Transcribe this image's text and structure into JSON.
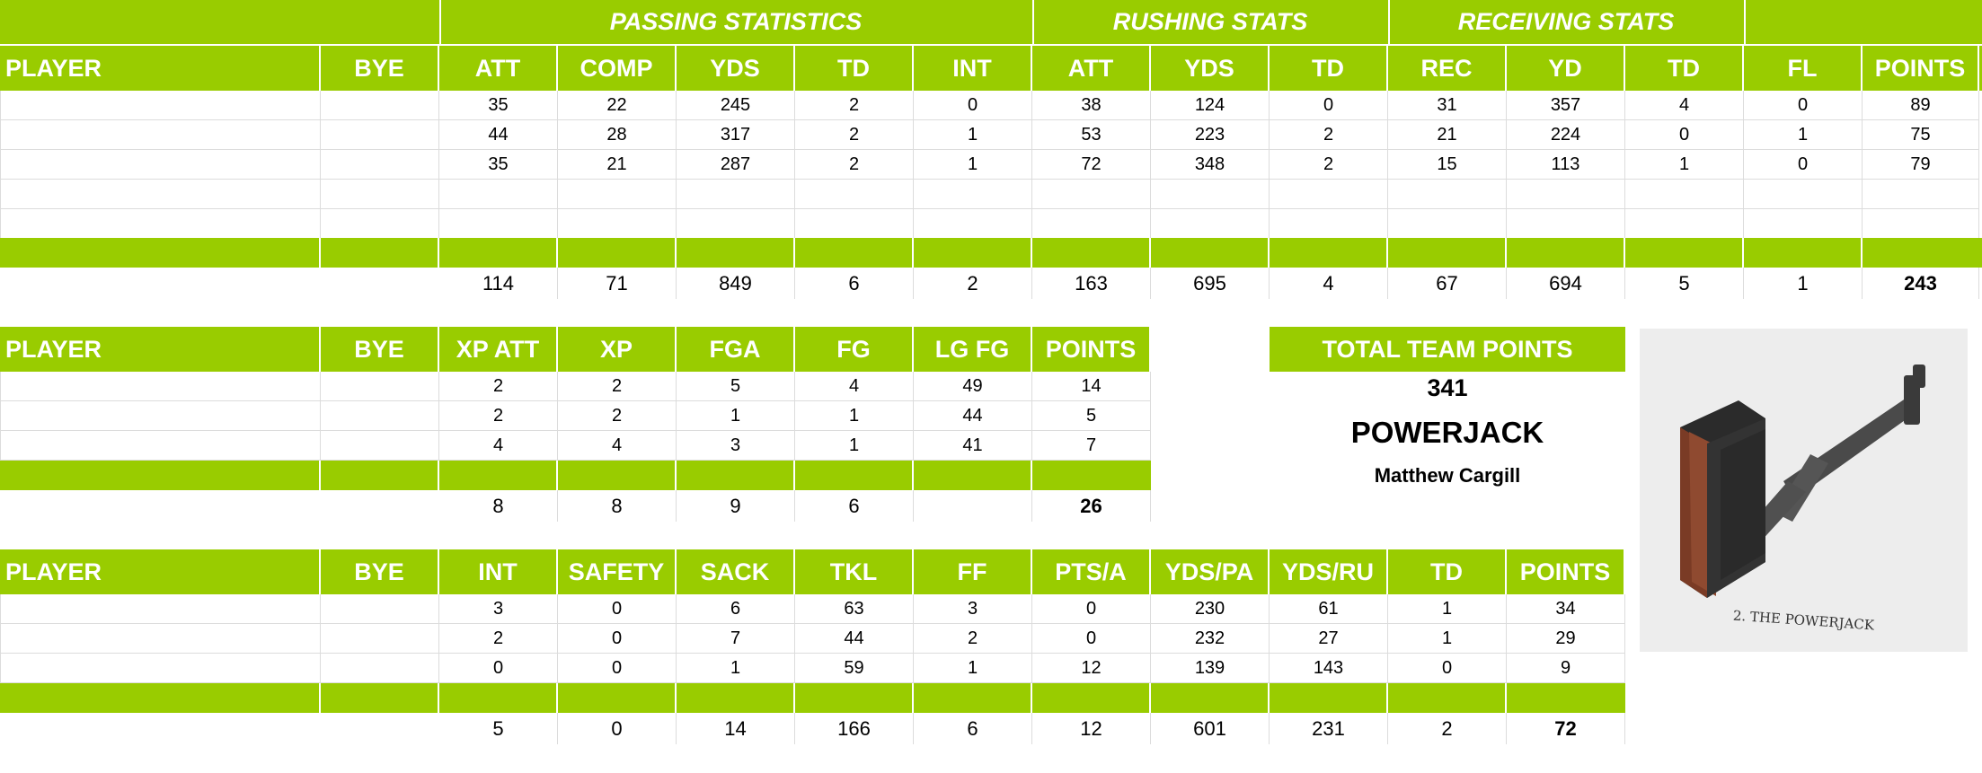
{
  "offense": {
    "groups": {
      "passing": "PASSING STATISTICS",
      "rushing": "RUSHING STATS",
      "receiving": "RECEIVING STATS"
    },
    "headers": [
      "PLAYER",
      "BYE",
      "ATT",
      "COMP",
      "YDS",
      "TD",
      "INT",
      "ATT",
      "YDS",
      "TD",
      "REC",
      "YD",
      "TD",
      "FL",
      "POINTS"
    ],
    "rows": [
      [
        "",
        "",
        "35",
        "22",
        "245",
        "2",
        "0",
        "38",
        "124",
        "0",
        "31",
        "357",
        "4",
        "0",
        "89"
      ],
      [
        "",
        "",
        "44",
        "28",
        "317",
        "2",
        "1",
        "53",
        "223",
        "2",
        "21",
        "224",
        "0",
        "1",
        "75"
      ],
      [
        "",
        "",
        "35",
        "21",
        "287",
        "2",
        "1",
        "72",
        "348",
        "2",
        "15",
        "113",
        "1",
        "0",
        "79"
      ]
    ],
    "totals": [
      "114",
      "71",
      "849",
      "6",
      "2",
      "163",
      "695",
      "4",
      "67",
      "694",
      "5",
      "1",
      "243"
    ]
  },
  "kicking": {
    "headers": [
      "PLAYER",
      "BYE",
      "XP ATT",
      "XP",
      "FGA",
      "FG",
      "LG FG",
      "POINTS"
    ],
    "rows": [
      [
        "",
        "",
        "2",
        "2",
        "5",
        "4",
        "49",
        "14"
      ],
      [
        "",
        "",
        "2",
        "2",
        "1",
        "1",
        "44",
        "5"
      ],
      [
        "",
        "",
        "4",
        "4",
        "3",
        "1",
        "41",
        "7"
      ]
    ],
    "totals": [
      "8",
      "8",
      "9",
      "6",
      "",
      "26"
    ]
  },
  "defense": {
    "headers": [
      "PLAYER",
      "BYE",
      "INT",
      "SAFETY",
      "SACK",
      "TKL",
      "FF",
      "PTS/A",
      "YDS/PA",
      "YDS/RU",
      "TD",
      "POINTS"
    ],
    "rows": [
      [
        "",
        "",
        "3",
        "0",
        "6",
        "63",
        "3",
        "0",
        "230",
        "61",
        "1",
        "34"
      ],
      [
        "",
        "",
        "2",
        "0",
        "7",
        "44",
        "2",
        "0",
        "232",
        "27",
        "1",
        "29"
      ],
      [
        "",
        "",
        "0",
        "0",
        "1",
        "59",
        "1",
        "12",
        "139",
        "143",
        "0",
        "9"
      ]
    ],
    "totals": [
      "5",
      "0",
      "14",
      "166",
      "6",
      "12",
      "601",
      "231",
      "2",
      "72"
    ]
  },
  "team": {
    "total_label": "TOTAL TEAM POINTS",
    "total_points": "341",
    "team_name": "POWERJACK",
    "owner": "Matthew Cargill",
    "logo_caption": "2. THE POWERJACK"
  },
  "colors": {
    "header_green": "#99cc00",
    "grid": "#dcdcdc"
  }
}
